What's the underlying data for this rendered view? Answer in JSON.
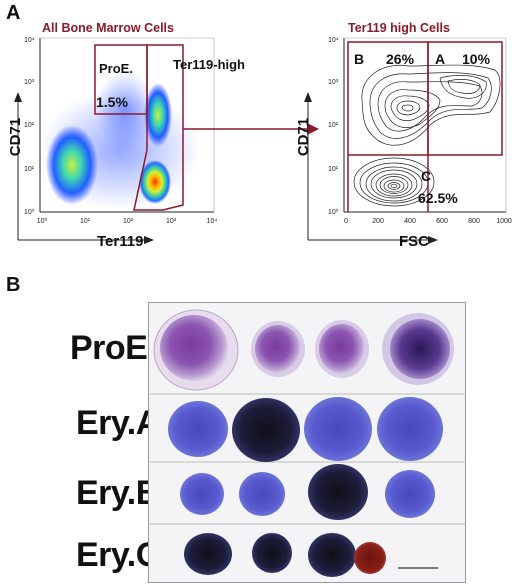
{
  "panel_a": {
    "letter": "A",
    "left_plot": {
      "title": "All Bone Marrow Cells",
      "xlabel": "Ter119",
      "ylabel": "CD71",
      "x_ticks": [
        "10⁰",
        "10¹",
        "10²",
        "10³",
        "10⁴"
      ],
      "y_ticks": [
        "10⁰",
        "10¹",
        "10²",
        "10³",
        "10⁴"
      ],
      "gate_proe_label": "ProE.",
      "gate_proe_percent": "1.5%",
      "gate_ter119_label": "Ter119-high"
    },
    "right_plot": {
      "title": "Ter119 high Cells",
      "xlabel": "FSC",
      "ylabel": "CD71",
      "x_ticks": [
        "0",
        "200",
        "400",
        "600",
        "800",
        "1000"
      ],
      "y_ticks": [
        "10⁰",
        "10¹",
        "10²",
        "10³",
        "10⁴"
      ],
      "gate_b_label": "B",
      "gate_b_percent": "26%",
      "gate_a_label": "A",
      "gate_a_percent": "10%",
      "gate_c_label": "C",
      "gate_c_percent": "62.5%"
    },
    "colors": {
      "title": "#8b1a2a",
      "gate": "#8b1a2a",
      "arrow": "#8b1a2a"
    }
  },
  "panel_b": {
    "letter": "B",
    "rows": [
      {
        "label": "ProE."
      },
      {
        "label": "Ery.A"
      },
      {
        "label": "Ery.B"
      },
      {
        "label": "Ery.C"
      }
    ]
  }
}
